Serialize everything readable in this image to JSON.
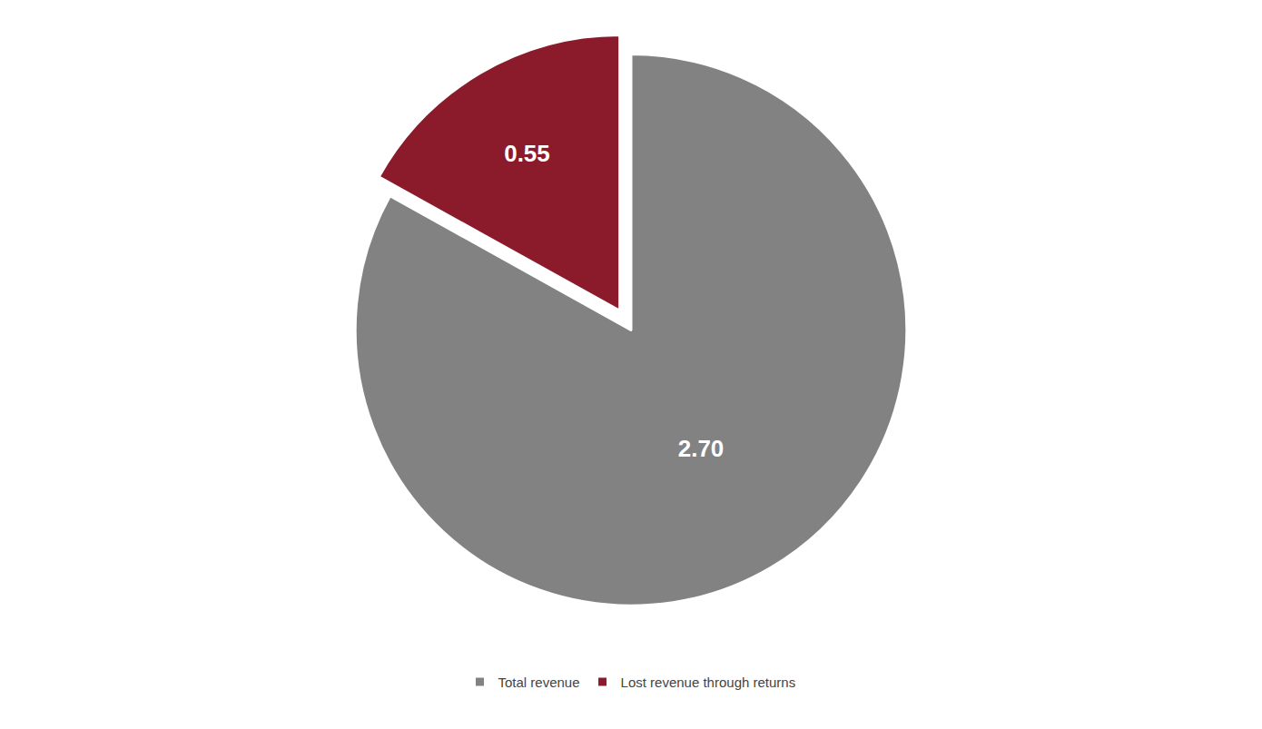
{
  "chart_data": {
    "type": "pie",
    "categories": [
      "Total revenue",
      "Lost revenue through returns"
    ],
    "values": [
      2.7,
      0.55
    ],
    "value_labels": [
      "2.70",
      "0.55"
    ],
    "colors": [
      "#828282",
      "#8B1A2B"
    ],
    "data_labels": true,
    "legend": "bottom"
  }
}
